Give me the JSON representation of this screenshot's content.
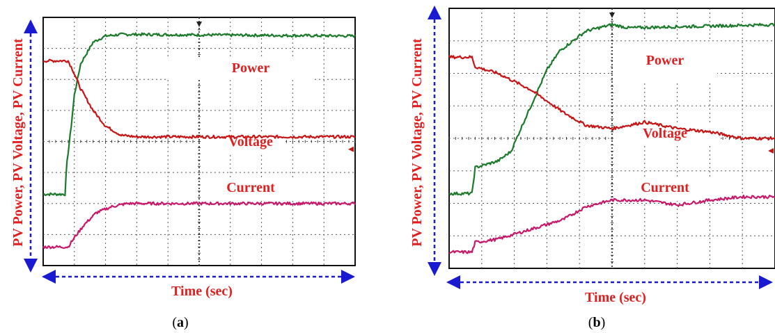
{
  "figure": {
    "panels": [
      {
        "id": "a",
        "label_open": "(",
        "label_letter": "a",
        "label_close": ")",
        "ylabel": "PV Power, PV Voltage, PV Current",
        "xlabel": "Time (sec)",
        "trace_labels": {
          "power": "Power",
          "voltage": "Voltage",
          "current": "Current"
        }
      },
      {
        "id": "b",
        "label_open": "(",
        "label_letter": "b",
        "label_close": ")",
        "ylabel": "PV Power, PV Voltage, PV Current",
        "xlabel": "Time (sec)",
        "trace_labels": {
          "power": "Power",
          "voltage": "Voltage",
          "current": "Current"
        }
      }
    ]
  },
  "colors": {
    "power": "#1a7a2a",
    "voltage": "#c81414",
    "current": "#c8186a",
    "axis_arrows": "#1a1ad0",
    "grid": "#555555",
    "label": "#e02020"
  },
  "chart_data": [
    {
      "type": "line",
      "grid": true,
      "grid_divisions": {
        "x": 10,
        "y": 8
      },
      "xlim": [
        0,
        10
      ],
      "ylim": [
        0,
        8
      ],
      "series": [
        {
          "name": "Power",
          "x": [
            0,
            0.7,
            0.75,
            0.9,
            1.0,
            1.2,
            1.6,
            2.0,
            2.5,
            3.0,
            10
          ],
          "y": [
            2.3,
            2.3,
            3.2,
            4.5,
            5.5,
            6.5,
            7.2,
            7.4,
            7.45,
            7.45,
            7.4
          ]
        },
        {
          "name": "Voltage",
          "x": [
            0,
            0.8,
            0.95,
            1.2,
            1.6,
            2.0,
            2.5,
            3.0,
            10
          ],
          "y": [
            6.6,
            6.6,
            6.3,
            5.7,
            5.0,
            4.5,
            4.2,
            4.15,
            4.15
          ]
        },
        {
          "name": "Current",
          "x": [
            0,
            0.8,
            1.0,
            1.3,
            1.7,
            2.2,
            2.7,
            3.0,
            10
          ],
          "y": [
            0.6,
            0.6,
            0.9,
            1.3,
            1.7,
            1.9,
            2.0,
            2.0,
            2.0
          ]
        }
      ]
    },
    {
      "type": "line",
      "grid": true,
      "grid_divisions": {
        "x": 10,
        "y": 8
      },
      "xlim": [
        0,
        10
      ],
      "ylim": [
        0,
        8
      ],
      "series": [
        {
          "name": "Power",
          "x": [
            0,
            0.7,
            0.8,
            1.5,
            1.9,
            2.2,
            2.6,
            3.0,
            3.4,
            3.8,
            4.2,
            5.0,
            5.5,
            10
          ],
          "y": [
            2.3,
            2.3,
            3.1,
            3.3,
            3.6,
            4.3,
            5.2,
            6.1,
            6.7,
            7.0,
            7.3,
            7.5,
            7.4,
            7.5
          ]
        },
        {
          "name": "Voltage",
          "x": [
            0,
            0.7,
            0.8,
            1.5,
            2.5,
            3.5,
            4.2,
            5.0,
            6.0,
            7.0,
            8.0,
            9.0,
            10
          ],
          "y": [
            6.5,
            6.5,
            6.2,
            6.0,
            5.5,
            4.8,
            4.4,
            4.3,
            4.5,
            4.3,
            4.2,
            4.0,
            4.0
          ]
        },
        {
          "name": "Current",
          "x": [
            0,
            0.7,
            0.8,
            1.5,
            2.5,
            3.5,
            4.2,
            5.0,
            6.0,
            7.0,
            8.0,
            9.0,
            10
          ],
          "y": [
            0.5,
            0.5,
            0.8,
            0.9,
            1.2,
            1.5,
            1.9,
            2.1,
            2.1,
            1.95,
            2.1,
            2.2,
            2.2
          ]
        }
      ]
    }
  ]
}
